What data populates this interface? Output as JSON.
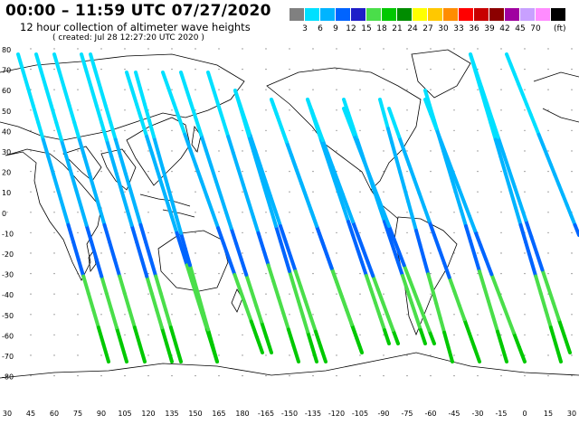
{
  "header": {
    "title": "00:00 – 11:59 UTC 07/27/2020",
    "subtitle": "12 hour collection of altimeter wave heights",
    "created": "( created: Jul 28 12:27:20 UTC 2020 )"
  },
  "legend": {
    "unit": "(ft)",
    "items": [
      {
        "label": "",
        "color": "#808080"
      },
      {
        "label": "3",
        "color": "#00e0ff"
      },
      {
        "label": "6",
        "color": "#00b4ff"
      },
      {
        "label": "9",
        "color": "#0064ff"
      },
      {
        "label": "12",
        "color": "#1e1ec8"
      },
      {
        "label": "15",
        "color": "#4ade4a"
      },
      {
        "label": "18",
        "color": "#00c800"
      },
      {
        "label": "21",
        "color": "#008c00"
      },
      {
        "label": "24",
        "color": "#ffff00"
      },
      {
        "label": "27",
        "color": "#ffc800"
      },
      {
        "label": "30",
        "color": "#ff8c00"
      },
      {
        "label": "33",
        "color": "#ff0000"
      },
      {
        "label": "36",
        "color": "#c80000"
      },
      {
        "label": "39",
        "color": "#8c0000"
      },
      {
        "label": "42",
        "color": "#a000a0"
      },
      {
        "label": "45",
        "color": "#c8a0ff"
      },
      {
        "label": "70",
        "color": "#ff8cff"
      },
      {
        "label": "",
        "color": "#000000"
      }
    ]
  },
  "map": {
    "lat_labels": [
      "80",
      "70",
      "60",
      "50",
      "40",
      "30",
      "20",
      "10",
      "0",
      "-10",
      "-20",
      "-30",
      "-40",
      "-50",
      "-60",
      "-70",
      "-80"
    ],
    "lon_labels": [
      "30",
      "45",
      "60",
      "75",
      "90",
      "105",
      "120",
      "135",
      "150",
      "165",
      "180",
      "-165",
      "-150",
      "-135",
      "-120",
      "-105",
      "-90",
      "-75",
      "-60",
      "-45",
      "-30",
      "-15",
      "0",
      "15",
      "30"
    ]
  }
}
